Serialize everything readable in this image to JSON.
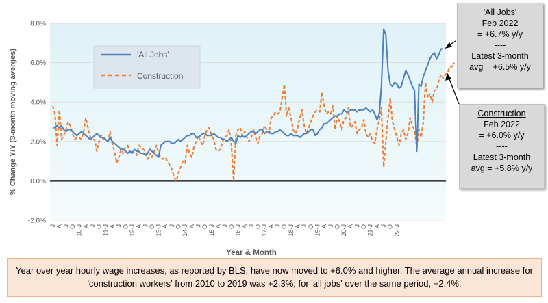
{
  "chart_data": {
    "type": "line",
    "xlabel": "Year & Month",
    "ylabel": "% Change Y/Y (3-month moving averges)",
    "ylim": [
      -2.0,
      8.0
    ],
    "yticks": [
      "-2.0%",
      "0.0%",
      "2.0%",
      "4.0%",
      "6.0%",
      "8.0%"
    ],
    "ytick_values": [
      -2,
      0,
      2,
      4,
      6,
      8
    ],
    "xtick_labels": [
      "J",
      "A",
      "J",
      "O",
      "10-J",
      "A",
      "J",
      "O",
      "11-J",
      "A",
      "J",
      "O",
      "12-J",
      "A",
      "J",
      "O",
      "13-J",
      "A",
      "J",
      "O",
      "14-J",
      "A",
      "J",
      "O",
      "15-J",
      "A",
      "J",
      "O",
      "16-J",
      "A",
      "J",
      "O",
      "17-J",
      "A",
      "J",
      "O",
      "18-J",
      "A",
      "J",
      "O",
      "19-J",
      "A",
      "J",
      "O",
      "20-J",
      "A",
      "J",
      "O",
      "21-J",
      "A",
      "J",
      "O",
      "22-J"
    ],
    "x_start": "2009-01",
    "x_end": "2022-02",
    "grid": "horizontal",
    "legend_position": "top-left",
    "series": [
      {
        "name": "'All Jobs'",
        "color": "#4f81bd",
        "style": "solid",
        "values": [
          2.7,
          2.7,
          2.8,
          2.7,
          2.8,
          2.6,
          2.5,
          2.6,
          2.6,
          2.5,
          2.4,
          2.3,
          2.4,
          2.5,
          2.4,
          2.3,
          2.2,
          2.1,
          2.2,
          2.3,
          2.4,
          2.3,
          2.2,
          2.2,
          2.1,
          2.0,
          2.2,
          2.0,
          1.9,
          1.8,
          1.7,
          1.6,
          1.6,
          1.5,
          1.4,
          1.5,
          1.4,
          1.6,
          1.5,
          1.5,
          1.4,
          1.4,
          1.3,
          1.4,
          1.6,
          1.5,
          1.4,
          1.3,
          1.2,
          1.8,
          1.9,
          2.0,
          2.0,
          2.0,
          1.9,
          1.9,
          2.0,
          2.1,
          2.0,
          2.1,
          2.2,
          2.3,
          2.3,
          2.4,
          2.4,
          2.2,
          2.2,
          2.3,
          2.4,
          2.4,
          2.3,
          2.3,
          2.3,
          2.4,
          2.3,
          2.2,
          2.2,
          2.1,
          2.1,
          2.0,
          2.1,
          2.2,
          2.0,
          1.9,
          2.3,
          2.2,
          2.3,
          2.2,
          2.3,
          2.4,
          2.5,
          2.5,
          2.4,
          2.5,
          2.6,
          2.6,
          2.4,
          2.5,
          2.5,
          2.4,
          2.4,
          2.5,
          2.5,
          2.6,
          2.5,
          2.4,
          2.3,
          2.3,
          2.4,
          2.3,
          2.3,
          2.3,
          2.2,
          2.3,
          2.4,
          2.4,
          2.5,
          2.6,
          2.6,
          2.3,
          2.4,
          2.6,
          2.7,
          2.9,
          2.9,
          3.0,
          3.1,
          3.2,
          3.3,
          3.3,
          3.4,
          3.4,
          3.6,
          3.5,
          3.5,
          3.6,
          3.6,
          3.6,
          3.5,
          3.6,
          3.6,
          3.6,
          3.7,
          3.6,
          3.5,
          3.6,
          3.4,
          3.1,
          3.4,
          4.8,
          7.7,
          7.4,
          5.6,
          4.9,
          4.8,
          5.0,
          4.9,
          4.7,
          4.8,
          5.2,
          5.6,
          5.4,
          5.1,
          4.8,
          4.6,
          1.5,
          4.9,
          4.8,
          5.3,
          5.6,
          5.9,
          6.2,
          6.4,
          6.5,
          6.2,
          6.4,
          6.7,
          6.7
        ]
      },
      {
        "name": "Construction",
        "color": "#ed7d31",
        "style": "dashed",
        "values": [
          3.8,
          3.4,
          1.8,
          3.6,
          2.1,
          2.3,
          2.6,
          3.0,
          2.8,
          2.4,
          2.1,
          2.2,
          2.2,
          2.1,
          2.5,
          3.2,
          2.7,
          2.2,
          2.1,
          2.1,
          1.5,
          2.0,
          2.3,
          2.1,
          2.1,
          2.0,
          2.5,
          1.9,
          1.5,
          0.9,
          1.2,
          1.6,
          1.4,
          1.7,
          1.8,
          1.4,
          1.5,
          1.4,
          1.3,
          1.8,
          1.7,
          1.6,
          1.5,
          1.1,
          1.4,
          1.2,
          1.5,
          1.8,
          1.4,
          1.2,
          1.1,
          1.2,
          1.0,
          0.8,
          0.6,
          0.2,
          0.0,
          0.4,
          0.7,
          1.0,
          0.9,
          1.8,
          1.4,
          1.2,
          1.7,
          2.0,
          2.3,
          2.0,
          1.8,
          2.3,
          2.6,
          2.7,
          2.3,
          2.1,
          1.6,
          1.5,
          1.6,
          2.0,
          2.2,
          2.3,
          2.6,
          1.8,
          0.0,
          2.3,
          2.6,
          2.7,
          2.3,
          2.5,
          2.2,
          2.0,
          2.2,
          2.6,
          2.2,
          1.9,
          2.3,
          2.4,
          2.8,
          2.6,
          2.4,
          3.2,
          3.3,
          3.5,
          3.4,
          3.5,
          4.2,
          4.9,
          3.3,
          3.7,
          3.2,
          2.6,
          2.4,
          2.7,
          3.2,
          3.6,
          2.8,
          2.4,
          2.7,
          3.0,
          3.3,
          3.5,
          3.6,
          3.5,
          4.5,
          3.8,
          3.4,
          3.5,
          3.4,
          3.8,
          2.6,
          3.3,
          3.0,
          2.6,
          3.1,
          3.2,
          3.7,
          2.7,
          2.8,
          3.0,
          2.4,
          2.6,
          2.7,
          3.1,
          2.4,
          2.2,
          2.4,
          2.0,
          1.9,
          2.6,
          3.1,
          3.7,
          0.7,
          2.0,
          3.2,
          4.2,
          3.0,
          2.6,
          2.2,
          1.8,
          2.4,
          2.6,
          2.1,
          2.4,
          3.2,
          2.8,
          2.6,
          1.7,
          2.6,
          2.2,
          3.0,
          5.0,
          4.2,
          4.4,
          4.0,
          4.6,
          4.6,
          5.1,
          5.4,
          5.2,
          5.4,
          5.5,
          5.8,
          5.8,
          6.0
        ]
      }
    ]
  },
  "callouts": {
    "all_jobs": {
      "title": "'All Jobs'",
      "line1": "Feb 2022",
      "line2": "= +6.7% y/y",
      "sep": "----",
      "line3": "Latest 3-month",
      "line4": "avg = +6.5% y/y"
    },
    "construction": {
      "title": "Construction",
      "line1": "Feb 2022",
      "line2": "= +6.0% y/y",
      "sep": "----",
      "line3": "Latest 3-month",
      "line4": "avg = +5.8% y/y"
    }
  },
  "caption": {
    "text": "Year over year hourly wage increases, as reported by BLS, have now moved to +6.0% and higher. The average annual increase for 'construction workers' from 2010 to 2019 was +2.3%; for 'all jobs' over the same period, +2.4%."
  }
}
